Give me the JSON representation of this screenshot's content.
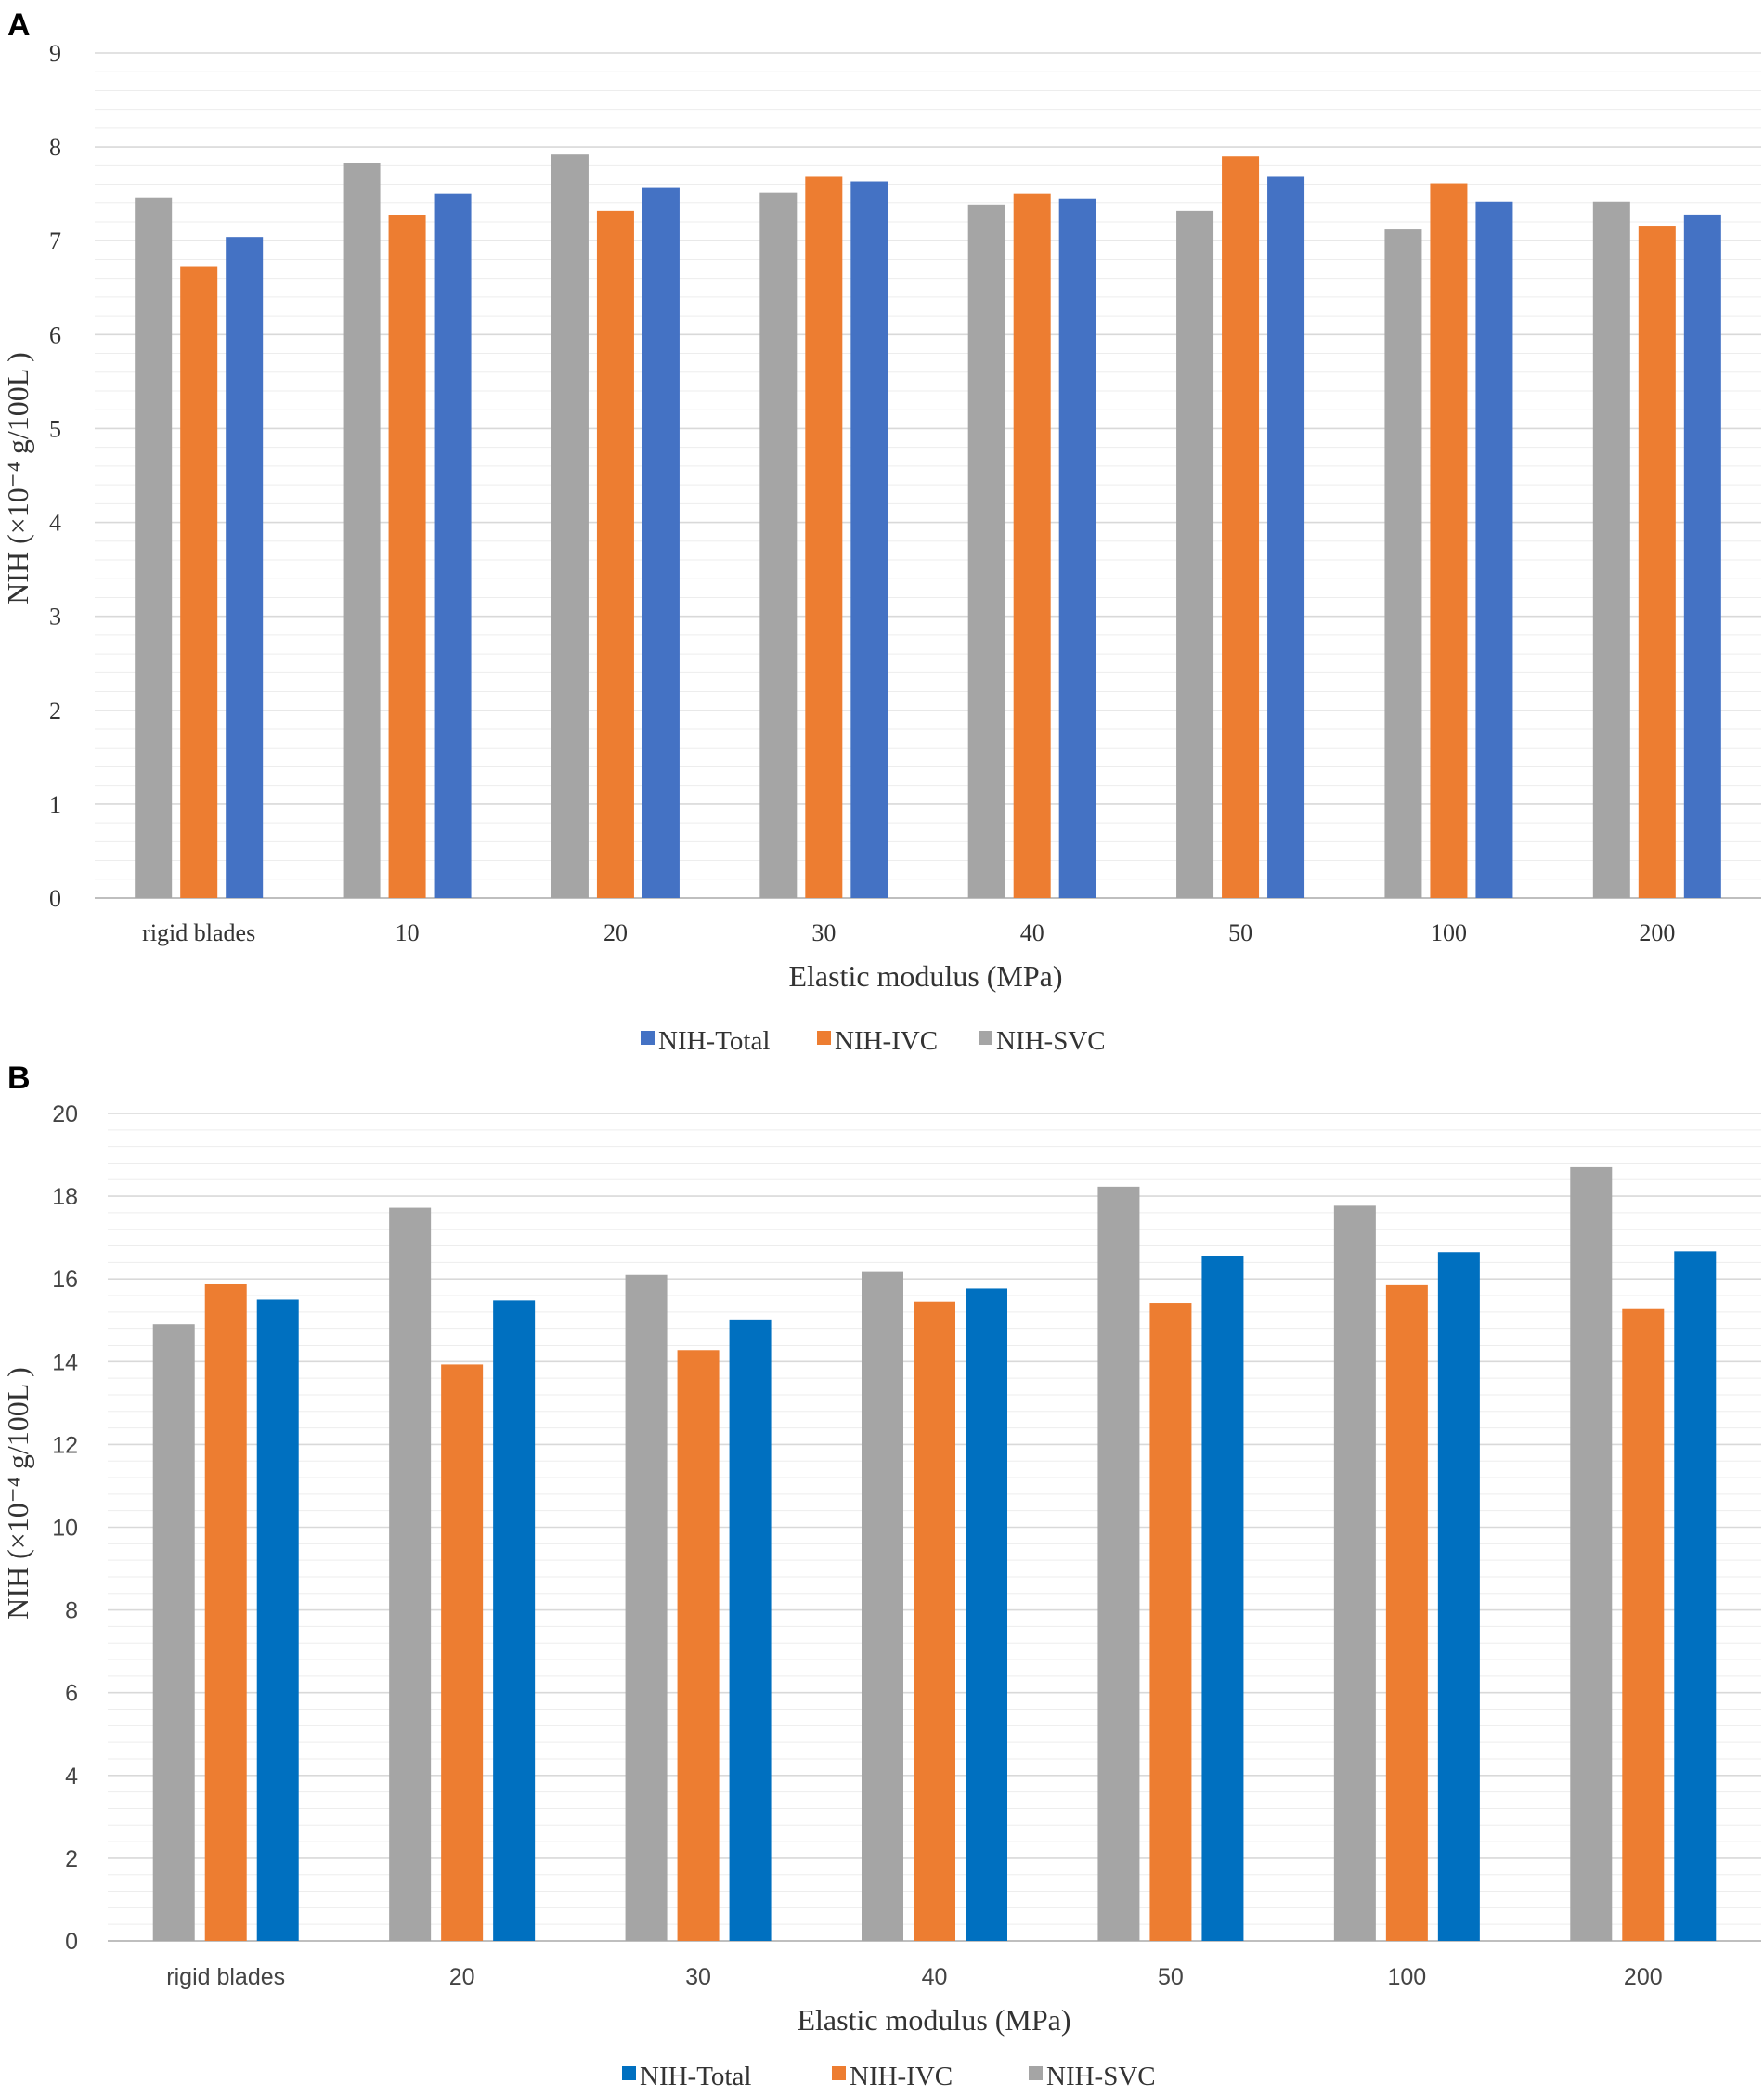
{
  "chart_data": [
    {
      "panel": "A",
      "type": "bar",
      "categories": [
        "rigid blades",
        "10",
        "20",
        "30",
        "40",
        "50",
        "100",
        "200"
      ],
      "xlabel": "Elastic modulus (MPa)",
      "ylabel": "NIH (×10⁻⁴ g/100L )",
      "ylim": [
        0,
        9
      ],
      "yticks": [
        "0",
        "1",
        "2",
        "3",
        "4",
        "5",
        "6",
        "7",
        "8",
        "9"
      ],
      "grid": true,
      "legend_position": "bottom",
      "legend": [
        "NIH-Total",
        "NIH-IVC",
        "NIH-SVC"
      ],
      "series": [
        {
          "name": "NIH-SVC",
          "color": "#a5a5a5",
          "values": [
            7.46,
            7.83,
            7.92,
            7.51,
            7.38,
            7.32,
            7.12,
            7.42
          ]
        },
        {
          "name": "NIH-IVC",
          "color": "#ed7d31",
          "values": [
            6.73,
            7.27,
            7.32,
            7.68,
            7.5,
            7.9,
            7.61,
            7.16
          ]
        },
        {
          "name": "NIH-Total",
          "color": "#4472c4",
          "values": [
            7.04,
            7.5,
            7.57,
            7.63,
            7.45,
            7.68,
            7.42,
            7.28
          ]
        }
      ]
    },
    {
      "panel": "B",
      "type": "bar",
      "categories": [
        "rigid blades",
        "20",
        "30",
        "40",
        "50",
        "100",
        "200"
      ],
      "xlabel": "Elastic modulus (MPa)",
      "ylabel": "NIH (×10⁻⁴ g/100L )",
      "ylim": [
        0,
        20
      ],
      "yticks": [
        "0",
        "2",
        "4",
        "6",
        "8",
        "10",
        "12",
        "14",
        "16",
        "18",
        "20"
      ],
      "grid": true,
      "legend_position": "bottom",
      "legend": [
        "NIH-Total",
        "NIH-IVC",
        "NIH-SVC"
      ],
      "series": [
        {
          "name": "NIH-SVC",
          "color": "#a5a5a5",
          "values": [
            14.9,
            17.72,
            16.1,
            16.17,
            18.23,
            17.77,
            18.7
          ]
        },
        {
          "name": "NIH-IVC",
          "color": "#ed7d31",
          "values": [
            15.87,
            13.93,
            14.27,
            15.45,
            15.42,
            15.85,
            15.27
          ]
        },
        {
          "name": "NIH-Total",
          "color": "#0070c0",
          "values": [
            15.5,
            15.48,
            15.02,
            15.77,
            16.55,
            16.65,
            16.67
          ]
        }
      ]
    }
  ]
}
